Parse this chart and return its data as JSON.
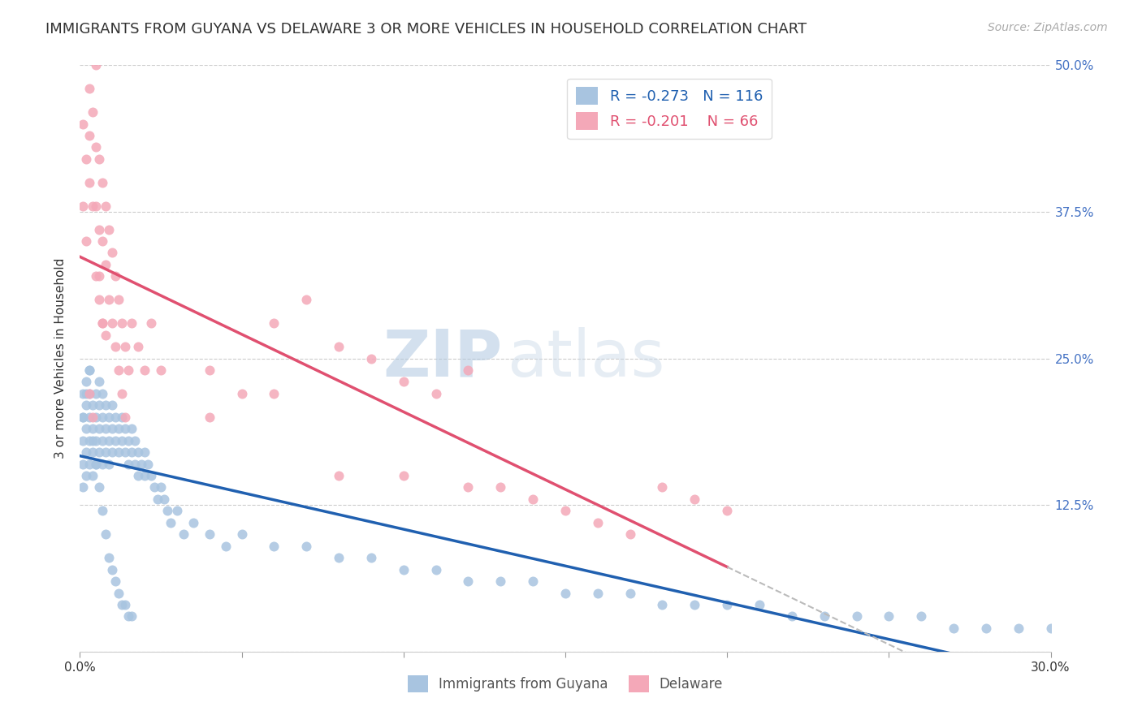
{
  "title": "IMMIGRANTS FROM GUYANA VS DELAWARE 3 OR MORE VEHICLES IN HOUSEHOLD CORRELATION CHART",
  "source": "Source: ZipAtlas.com",
  "ylabel": "3 or more Vehicles in Household",
  "xlim": [
    0.0,
    0.3
  ],
  "ylim": [
    0.0,
    0.5
  ],
  "blue_R": -0.273,
  "blue_N": 116,
  "pink_R": -0.201,
  "pink_N": 66,
  "blue_color": "#a8c4e0",
  "blue_line_color": "#2060b0",
  "pink_color": "#f4a8b8",
  "pink_line_color": "#e05070",
  "watermark_zip": "ZIP",
  "watermark_atlas": "atlas",
  "legend_label_blue": "Immigrants from Guyana",
  "legend_label_pink": "Delaware",
  "blue_scatter_x": [
    0.001,
    0.001,
    0.001,
    0.001,
    0.001,
    0.002,
    0.002,
    0.002,
    0.002,
    0.002,
    0.003,
    0.003,
    0.003,
    0.003,
    0.003,
    0.004,
    0.004,
    0.004,
    0.004,
    0.005,
    0.005,
    0.005,
    0.005,
    0.006,
    0.006,
    0.006,
    0.006,
    0.007,
    0.007,
    0.007,
    0.007,
    0.008,
    0.008,
    0.008,
    0.009,
    0.009,
    0.009,
    0.01,
    0.01,
    0.01,
    0.011,
    0.011,
    0.012,
    0.012,
    0.013,
    0.013,
    0.014,
    0.014,
    0.015,
    0.015,
    0.016,
    0.016,
    0.017,
    0.017,
    0.018,
    0.018,
    0.019,
    0.02,
    0.02,
    0.021,
    0.022,
    0.023,
    0.024,
    0.025,
    0.026,
    0.027,
    0.028,
    0.03,
    0.032,
    0.035,
    0.04,
    0.045,
    0.05,
    0.06,
    0.07,
    0.08,
    0.09,
    0.1,
    0.11,
    0.12,
    0.13,
    0.14,
    0.15,
    0.16,
    0.17,
    0.18,
    0.19,
    0.2,
    0.21,
    0.22,
    0.23,
    0.24,
    0.25,
    0.26,
    0.27,
    0.28,
    0.29,
    0.3,
    0.001,
    0.002,
    0.003,
    0.004,
    0.005,
    0.006,
    0.007,
    0.008,
    0.009,
    0.01,
    0.011,
    0.012,
    0.013,
    0.014,
    0.015,
    0.016
  ],
  "blue_scatter_y": [
    0.2,
    0.18,
    0.16,
    0.22,
    0.14,
    0.21,
    0.19,
    0.17,
    0.23,
    0.15,
    0.22,
    0.2,
    0.18,
    0.16,
    0.24,
    0.19,
    0.17,
    0.21,
    0.15,
    0.2,
    0.18,
    0.22,
    0.16,
    0.19,
    0.21,
    0.17,
    0.23,
    0.2,
    0.18,
    0.16,
    0.22,
    0.19,
    0.17,
    0.21,
    0.18,
    0.2,
    0.16,
    0.19,
    0.17,
    0.21,
    0.18,
    0.2,
    0.17,
    0.19,
    0.18,
    0.2,
    0.17,
    0.19,
    0.16,
    0.18,
    0.17,
    0.19,
    0.16,
    0.18,
    0.15,
    0.17,
    0.16,
    0.15,
    0.17,
    0.16,
    0.15,
    0.14,
    0.13,
    0.14,
    0.13,
    0.12,
    0.11,
    0.12,
    0.1,
    0.11,
    0.1,
    0.09,
    0.1,
    0.09,
    0.09,
    0.08,
    0.08,
    0.07,
    0.07,
    0.06,
    0.06,
    0.06,
    0.05,
    0.05,
    0.05,
    0.04,
    0.04,
    0.04,
    0.04,
    0.03,
    0.03,
    0.03,
    0.03,
    0.03,
    0.02,
    0.02,
    0.02,
    0.02,
    0.2,
    0.22,
    0.24,
    0.18,
    0.16,
    0.14,
    0.12,
    0.1,
    0.08,
    0.07,
    0.06,
    0.05,
    0.04,
    0.04,
    0.03,
    0.03
  ],
  "pink_scatter_x": [
    0.001,
    0.001,
    0.002,
    0.002,
    0.003,
    0.003,
    0.003,
    0.004,
    0.004,
    0.005,
    0.005,
    0.005,
    0.006,
    0.006,
    0.006,
    0.007,
    0.007,
    0.007,
    0.008,
    0.008,
    0.008,
    0.009,
    0.009,
    0.01,
    0.01,
    0.011,
    0.011,
    0.012,
    0.012,
    0.013,
    0.013,
    0.014,
    0.014,
    0.015,
    0.016,
    0.018,
    0.02,
    0.022,
    0.025,
    0.04,
    0.05,
    0.06,
    0.07,
    0.08,
    0.09,
    0.1,
    0.11,
    0.12,
    0.13,
    0.14,
    0.15,
    0.16,
    0.17,
    0.18,
    0.19,
    0.2,
    0.04,
    0.06,
    0.08,
    0.1,
    0.12,
    0.003,
    0.004,
    0.005,
    0.006,
    0.007
  ],
  "pink_scatter_y": [
    0.45,
    0.38,
    0.42,
    0.35,
    0.48,
    0.44,
    0.4,
    0.46,
    0.38,
    0.43,
    0.38,
    0.5,
    0.42,
    0.36,
    0.32,
    0.4,
    0.35,
    0.28,
    0.38,
    0.33,
    0.27,
    0.36,
    0.3,
    0.34,
    0.28,
    0.32,
    0.26,
    0.3,
    0.24,
    0.28,
    0.22,
    0.26,
    0.2,
    0.24,
    0.28,
    0.26,
    0.24,
    0.28,
    0.24,
    0.24,
    0.22,
    0.28,
    0.3,
    0.26,
    0.25,
    0.23,
    0.22,
    0.24,
    0.14,
    0.13,
    0.12,
    0.11,
    0.1,
    0.14,
    0.13,
    0.12,
    0.2,
    0.22,
    0.15,
    0.15,
    0.14,
    0.22,
    0.2,
    0.32,
    0.3,
    0.28
  ]
}
